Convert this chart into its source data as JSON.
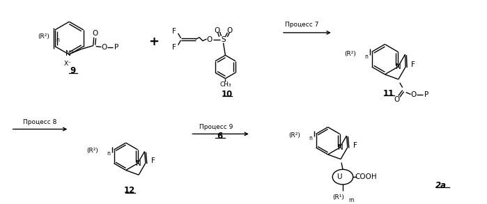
{
  "bg_color": "#ffffff",
  "fig_width": 6.99,
  "fig_height": 2.93,
  "dpi": 100,
  "arrow_proc7": "Процесс 7",
  "arrow_proc8": "Процесс 8",
  "arrow_proc9": "Процесс 9",
  "label_6": "6",
  "label_9": "9",
  "label_10": "10",
  "label_11": "11",
  "label_12": "12",
  "label_2a": "2a"
}
